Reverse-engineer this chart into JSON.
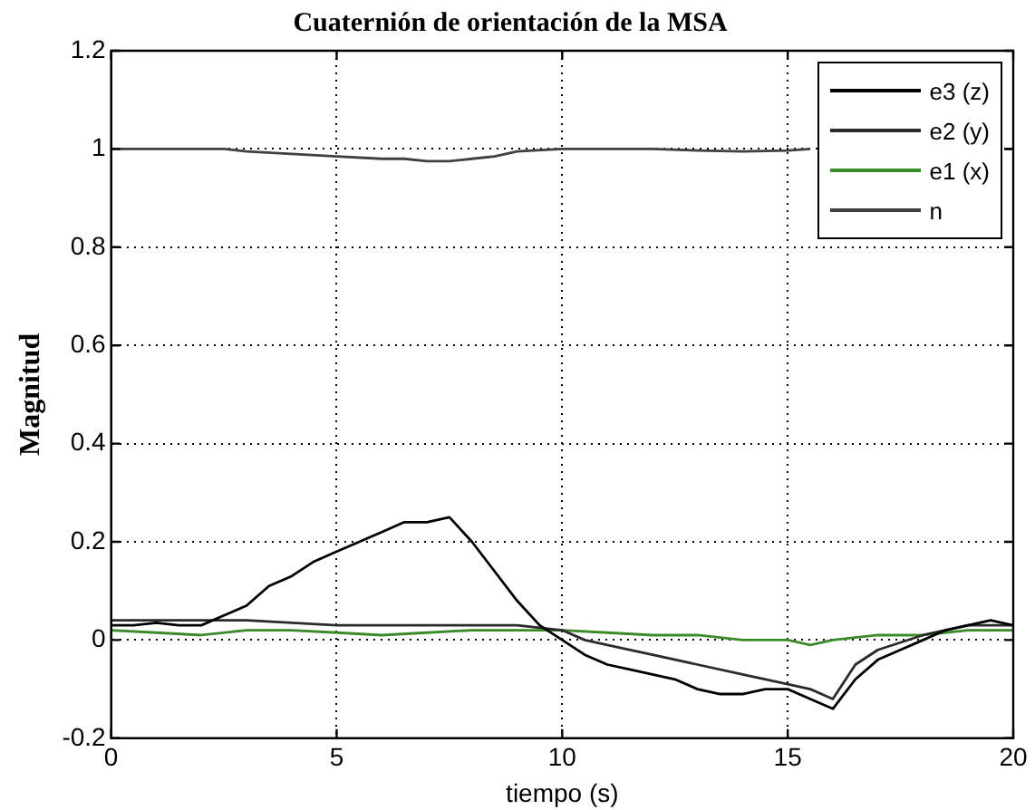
{
  "chart_data": {
    "type": "line",
    "title": "Cuaternión de orientación de la MSA",
    "xlabel": "tiempo (s)",
    "ylabel": "Magnitud",
    "xlim": [
      0,
      20
    ],
    "xticks": [
      0,
      5,
      10,
      15,
      20
    ],
    "ylim": [
      -0.2,
      1.2
    ],
    "yticks": [
      -0.2,
      0,
      0.2,
      0.4,
      0.6,
      0.8,
      1,
      1.2
    ],
    "grid": true,
    "legend": "top right",
    "marker": "none",
    "line_style": "solid",
    "series": [
      {
        "name": "e3 (z)",
        "color": "#000000",
        "x": [
          0,
          0.5,
          1,
          1.5,
          2,
          2.5,
          3,
          3.5,
          4,
          4.5,
          5,
          5.5,
          6,
          6.5,
          7,
          7.5,
          8,
          8.5,
          9,
          9.5,
          10,
          10.5,
          11,
          11.5,
          12,
          12.5,
          13,
          13.5,
          14,
          14.5,
          15,
          15.5,
          16,
          16.5,
          17,
          17.5,
          18,
          18.5,
          19,
          19.5,
          20
        ],
        "values": [
          0.03,
          0.03,
          0.035,
          0.03,
          0.03,
          0.05,
          0.07,
          0.11,
          0.13,
          0.16,
          0.18,
          0.2,
          0.22,
          0.24,
          0.24,
          0.25,
          0.2,
          0.14,
          0.08,
          0.03,
          0.0,
          -0.03,
          -0.05,
          -0.06,
          -0.07,
          -0.08,
          -0.1,
          -0.11,
          -0.11,
          -0.1,
          -0.1,
          -0.12,
          -0.14,
          -0.08,
          -0.04,
          -0.02,
          0.0,
          0.02,
          0.03,
          0.04,
          0.03
        ]
      },
      {
        "name": "e2 (y)",
        "color": "#2a2a2a",
        "x": [
          0,
          1,
          2,
          3,
          4,
          5,
          6,
          7,
          8,
          9,
          10,
          10.5,
          11,
          12,
          13,
          14,
          15,
          15.5,
          16,
          16.5,
          17,
          18,
          19,
          20
        ],
        "values": [
          0.04,
          0.04,
          0.04,
          0.04,
          0.035,
          0.03,
          0.03,
          0.03,
          0.03,
          0.03,
          0.02,
          0.0,
          -0.01,
          -0.03,
          -0.05,
          -0.07,
          -0.09,
          -0.1,
          -0.12,
          -0.05,
          -0.02,
          0.01,
          0.03,
          0.03
        ]
      },
      {
        "name": "e1 (x)",
        "color": "#3a8a2a",
        "x": [
          0,
          1,
          2,
          3,
          4,
          5,
          6,
          7,
          8,
          9,
          10,
          11,
          12,
          13,
          14,
          15,
          15.5,
          16,
          17,
          18,
          19,
          20
        ],
        "values": [
          0.02,
          0.015,
          0.01,
          0.02,
          0.02,
          0.015,
          0.01,
          0.015,
          0.02,
          0.02,
          0.02,
          0.015,
          0.01,
          0.01,
          0.0,
          0.0,
          -0.01,
          0.0,
          0.01,
          0.01,
          0.02,
          0.02
        ]
      },
      {
        "name": "n",
        "color": "#404040",
        "x": [
          0,
          1,
          2,
          2.5,
          3,
          4,
          5,
          6,
          6.5,
          7,
          7.5,
          8,
          8.5,
          9,
          10,
          11,
          12,
          13,
          14,
          15,
          15.5,
          16,
          19.8,
          20
        ],
        "values": [
          1,
          1,
          1,
          1,
          0.995,
          0.99,
          0.985,
          0.98,
          0.98,
          0.975,
          0.975,
          0.98,
          0.985,
          0.995,
          1,
          1,
          1,
          0.997,
          0.995,
          0.997,
          1,
          null,
          1,
          1
        ]
      }
    ]
  }
}
